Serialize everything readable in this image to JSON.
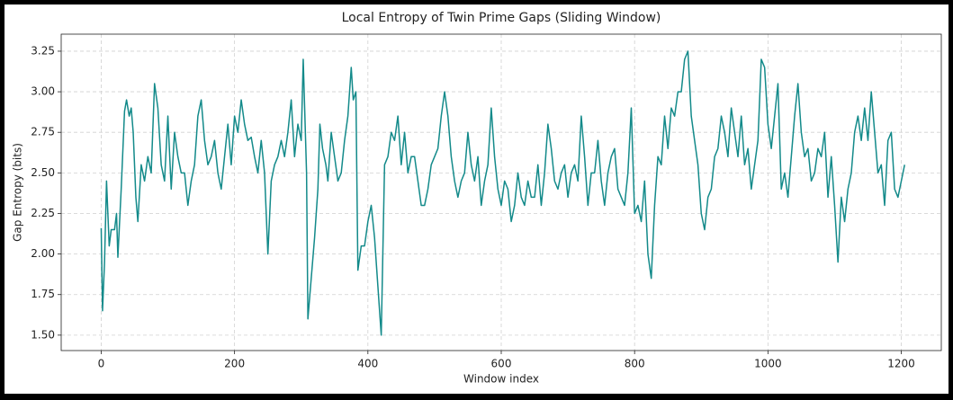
{
  "chart_data": {
    "type": "line",
    "title": "Local Entropy of Twin Prime Gaps (Sliding Window)",
    "x_label": "Window index",
    "y_label": "Gap Entropy (bits)",
    "color": "#138a8a",
    "grid": true,
    "xlim": [
      -60,
      1260
    ],
    "ylim": [
      1.405,
      3.355
    ],
    "xticks": [
      0,
      200,
      400,
      600,
      800,
      1000,
      1200
    ],
    "yticks": [
      {
        "value": 1.5,
        "label": "1.50"
      },
      1.75,
      {
        "value": 2.0,
        "label": "2.00"
      },
      2.25,
      {
        "value": 2.5,
        "label": "2.50"
      },
      2.75,
      {
        "value": 3.0,
        "label": "3.00"
      },
      3.25
    ],
    "x": [
      0,
      2,
      5,
      8,
      12,
      15,
      20,
      23,
      25,
      30,
      35,
      38,
      42,
      45,
      48,
      52,
      55,
      60,
      65,
      70,
      75,
      80,
      85,
      90,
      95,
      100,
      105,
      110,
      115,
      120,
      125,
      130,
      135,
      140,
      145,
      150,
      155,
      160,
      165,
      170,
      175,
      180,
      185,
      190,
      195,
      200,
      205,
      210,
      215,
      220,
      225,
      230,
      235,
      240,
      245,
      250,
      255,
      260,
      265,
      270,
      275,
      280,
      285,
      290,
      295,
      300,
      303,
      308,
      310,
      315,
      320,
      325,
      328,
      332,
      337,
      340,
      345,
      350,
      355,
      360,
      365,
      370,
      375,
      378,
      382,
      385,
      390,
      395,
      400,
      405,
      410,
      415,
      420,
      425,
      430,
      435,
      440,
      445,
      450,
      455,
      460,
      465,
      470,
      475,
      480,
      485,
      490,
      495,
      500,
      505,
      510,
      515,
      520,
      525,
      530,
      535,
      540,
      545,
      550,
      555,
      560,
      565,
      570,
      575,
      580,
      585,
      590,
      595,
      600,
      605,
      610,
      615,
      620,
      625,
      630,
      635,
      640,
      645,
      650,
      655,
      660,
      665,
      670,
      675,
      680,
      685,
      690,
      695,
      700,
      705,
      710,
      715,
      720,
      725,
      730,
      735,
      740,
      745,
      750,
      755,
      760,
      765,
      770,
      775,
      780,
      785,
      790,
      795,
      800,
      805,
      810,
      815,
      820,
      825,
      830,
      835,
      840,
      845,
      850,
      855,
      860,
      865,
      870,
      875,
      880,
      885,
      890,
      895,
      900,
      905,
      910,
      915,
      920,
      925,
      930,
      935,
      940,
      945,
      950,
      955,
      960,
      965,
      970,
      975,
      980,
      985,
      990,
      995,
      1000,
      1005,
      1010,
      1015,
      1020,
      1025,
      1030,
      1035,
      1040,
      1045,
      1050,
      1055,
      1060,
      1065,
      1070,
      1075,
      1080,
      1085,
      1090,
      1095,
      1100,
      1105,
      1110,
      1115,
      1120,
      1125,
      1130,
      1135,
      1140,
      1145,
      1150,
      1155,
      1160,
      1165,
      1170,
      1175,
      1180,
      1185,
      1190,
      1195,
      1200,
      1205
    ],
    "values": [
      2.16,
      1.65,
      1.95,
      2.45,
      2.05,
      2.15,
      2.15,
      2.25,
      1.98,
      2.4,
      2.88,
      2.95,
      2.85,
      2.9,
      2.75,
      2.35,
      2.2,
      2.55,
      2.45,
      2.6,
      2.5,
      3.05,
      2.9,
      2.55,
      2.45,
      2.85,
      2.4,
      2.75,
      2.6,
      2.5,
      2.5,
      2.3,
      2.45,
      2.55,
      2.85,
      2.95,
      2.7,
      2.55,
      2.6,
      2.7,
      2.5,
      2.4,
      2.6,
      2.8,
      2.55,
      2.85,
      2.75,
      2.95,
      2.8,
      2.7,
      2.72,
      2.6,
      2.5,
      2.7,
      2.5,
      2.0,
      2.45,
      2.55,
      2.6,
      2.7,
      2.6,
      2.75,
      2.95,
      2.6,
      2.8,
      2.7,
      3.2,
      2.5,
      1.6,
      1.85,
      2.1,
      2.4,
      2.8,
      2.65,
      2.55,
      2.45,
      2.75,
      2.6,
      2.45,
      2.5,
      2.7,
      2.85,
      3.15,
      2.95,
      3.0,
      1.9,
      2.05,
      2.05,
      2.2,
      2.3,
      2.1,
      1.8,
      1.5,
      2.55,
      2.6,
      2.75,
      2.7,
      2.85,
      2.55,
      2.75,
      2.5,
      2.6,
      2.6,
      2.45,
      2.3,
      2.3,
      2.4,
      2.55,
      2.6,
      2.65,
      2.85,
      3.0,
      2.85,
      2.6,
      2.45,
      2.35,
      2.45,
      2.5,
      2.75,
      2.55,
      2.45,
      2.6,
      2.3,
      2.45,
      2.55,
      2.9,
      2.6,
      2.4,
      2.3,
      2.45,
      2.4,
      2.2,
      2.3,
      2.5,
      2.35,
      2.3,
      2.45,
      2.35,
      2.35,
      2.55,
      2.3,
      2.5,
      2.8,
      2.65,
      2.45,
      2.4,
      2.5,
      2.55,
      2.35,
      2.5,
      2.55,
      2.45,
      2.85,
      2.6,
      2.3,
      2.5,
      2.5,
      2.7,
      2.45,
      2.3,
      2.5,
      2.6,
      2.65,
      2.4,
      2.35,
      2.3,
      2.5,
      2.9,
      2.25,
      2.3,
      2.2,
      2.45,
      2.0,
      1.85,
      2.3,
      2.6,
      2.55,
      2.85,
      2.65,
      2.9,
      2.85,
      3.0,
      3.0,
      3.2,
      3.25,
      2.85,
      2.7,
      2.55,
      2.25,
      2.15,
      2.35,
      2.4,
      2.6,
      2.65,
      2.85,
      2.75,
      2.6,
      2.9,
      2.75,
      2.6,
      2.85,
      2.55,
      2.65,
      2.4,
      2.55,
      2.7,
      3.2,
      3.15,
      2.8,
      2.65,
      2.85,
      3.05,
      2.4,
      2.5,
      2.35,
      2.6,
      2.85,
      3.05,
      2.75,
      2.6,
      2.65,
      2.45,
      2.5,
      2.65,
      2.6,
      2.75,
      2.35,
      2.6,
      2.3,
      1.95,
      2.35,
      2.2,
      2.4,
      2.5,
      2.75,
      2.85,
      2.7,
      2.9,
      2.7,
      3.0,
      2.75,
      2.5,
      2.55,
      2.3,
      2.7,
      2.75,
      2.4,
      2.35,
      2.45,
      2.55
    ]
  }
}
